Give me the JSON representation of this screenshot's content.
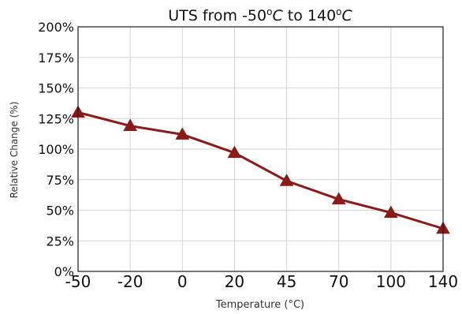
{
  "chart_data": {
    "type": "line",
    "title_prefix": "UTS from -50",
    "title_unit1": "o",
    "title_unit2": "C",
    "title_mid": " to 140",
    "title_unit3": "o",
    "title_unit4": "C",
    "xlabel": "Temperature (°C)",
    "ylabel": "Relative Change (%)",
    "categories": [
      "-50",
      "-20",
      "0",
      "20",
      "45",
      "70",
      "100",
      "140"
    ],
    "yticks": [
      "0%",
      "25%",
      "50%",
      "75%",
      "100%",
      "125%",
      "150%",
      "175%",
      "200%"
    ],
    "ylim": [
      0,
      200
    ],
    "grid": true,
    "marker": "triangle",
    "series_color": "#8b1a1a",
    "values": [
      130,
      119,
      112,
      97,
      74,
      59,
      48,
      35
    ]
  }
}
